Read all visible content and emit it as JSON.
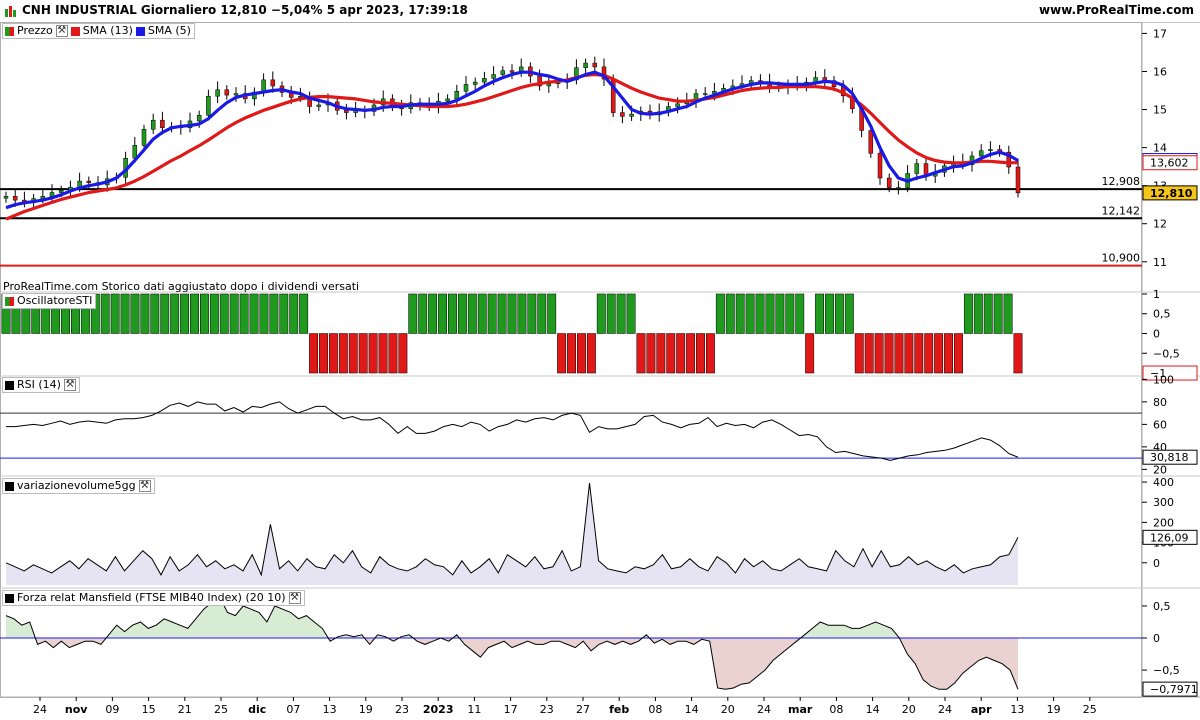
{
  "header": {
    "title": "CNH INDUSTRIAL Giornaliero 12,810 −5,04% 5 apr 2023, 17:39:18",
    "site": "www.ProRealTime.com"
  },
  "legend": {
    "price": "Prezzo",
    "sma13": "SMA (13)",
    "sma5": "SMA (5)",
    "sti": "OscillatoreSTI",
    "rsi": "RSI (14)",
    "vol": "variazionevolume5gg",
    "mansfield": "Forza relat Mansfield (FTSE MIB40 Index) (20 10)"
  },
  "note": "ProRealTime.com Storico dati aggiustato dopo i dividendi versati",
  "colors": {
    "up": "#1f9a1f",
    "down": "#e01818",
    "sma13": "#e01818",
    "sma5": "#1a1ae6",
    "line_black": "#000000",
    "line_blue": "#1a1ae6"
  },
  "chart_data": [
    {
      "type": "line",
      "title": "CNH INDUSTRIAL Giornaliero",
      "x_ticks": [
        "24",
        "nov",
        "09",
        "15",
        "21",
        "25",
        "dic",
        "07",
        "13",
        "19",
        "23",
        "2023",
        "11",
        "17",
        "23",
        "27",
        "feb",
        "08",
        "14",
        "20",
        "24",
        "mar",
        "08",
        "14",
        "20",
        "24",
        "apr",
        "13",
        "19",
        "25"
      ],
      "y_ticks": [
        "11",
        "12",
        "13",
        "14",
        "15",
        "16",
        "17"
      ],
      "ylim": [
        10.6,
        17.3
      ],
      "horizontal_lines": [
        {
          "label": "12,908",
          "value": 12.908
        },
        {
          "label": "12,142",
          "value": 12.142
        },
        {
          "label": "10,900",
          "value": 10.9
        }
      ],
      "axis_tags": [
        {
          "label": "13,660",
          "value": 13.66
        },
        {
          "label": "13,602",
          "value": 13.602
        },
        {
          "label": "12,810",
          "value": 12.81
        }
      ],
      "series": [
        {
          "name": "Prezzo",
          "close": [
            12.72,
            12.62,
            12.55,
            12.66,
            12.72,
            12.82,
            12.88,
            12.96,
            13.12,
            13.08,
            13.02,
            13.18,
            13.22,
            13.72,
            14.06,
            14.48,
            14.72,
            14.52,
            14.55,
            14.52,
            14.7,
            14.85,
            15.35,
            15.52,
            15.38,
            15.42,
            15.28,
            15.46,
            15.78,
            15.62,
            15.45,
            15.32,
            15.35,
            15.08,
            15.12,
            15.2,
            14.98,
            14.92,
            14.98,
            14.95,
            15.12,
            15.28,
            15.08,
            15.02,
            15.18,
            15.15,
            15.08,
            15.22,
            15.28,
            15.48,
            15.66,
            15.72,
            15.82,
            15.92,
            16.02,
            15.98,
            16.12,
            15.88,
            15.62,
            15.68,
            15.72,
            15.78,
            16.1,
            16.22,
            16.12,
            15.8,
            14.92,
            14.82,
            14.88,
            14.96,
            14.86,
            14.94,
            15.08,
            15.15,
            15.22,
            15.42,
            15.42,
            15.48,
            15.56,
            15.62,
            15.68,
            15.76,
            15.72,
            15.62,
            15.58,
            15.62,
            15.66,
            15.72,
            15.84,
            15.76,
            15.6,
            15.36,
            15.02,
            14.45,
            13.85,
            13.2,
            12.95,
            12.95,
            13.32,
            13.58,
            13.25,
            13.35,
            13.52,
            13.62,
            13.55,
            13.78,
            13.92,
            13.95,
            13.88,
            13.49,
            12.81
          ]
        },
        {
          "name": "SMA (13)",
          "values": [
            12.12,
            12.22,
            12.32,
            12.4,
            12.48,
            12.56,
            12.64,
            12.7,
            12.76,
            12.82,
            12.86,
            12.9,
            12.94,
            13.02,
            13.12,
            13.24,
            13.38,
            13.52,
            13.66,
            13.78,
            13.92,
            14.05,
            14.2,
            14.36,
            14.52,
            14.66,
            14.78,
            14.88,
            14.98,
            15.06,
            15.14,
            15.22,
            15.28,
            15.32,
            15.34,
            15.34,
            15.32,
            15.3,
            15.28,
            15.24,
            15.2,
            15.18,
            15.16,
            15.14,
            15.12,
            15.1,
            15.08,
            15.08,
            15.08,
            15.1,
            15.14,
            15.2,
            15.26,
            15.34,
            15.42,
            15.5,
            15.58,
            15.64,
            15.68,
            15.72,
            15.74,
            15.78,
            15.84,
            15.9,
            15.92,
            15.9,
            15.8,
            15.68,
            15.56,
            15.46,
            15.38,
            15.3,
            15.26,
            15.22,
            15.22,
            15.24,
            15.28,
            15.32,
            15.38,
            15.44,
            15.5,
            15.54,
            15.56,
            15.58,
            15.58,
            15.6,
            15.6,
            15.6,
            15.6,
            15.58,
            15.54,
            15.44,
            15.3,
            15.12,
            14.9,
            14.66,
            14.42,
            14.2,
            14.02,
            13.86,
            13.74,
            13.66,
            13.62,
            13.6,
            13.6,
            13.62,
            13.64,
            13.64,
            13.62,
            13.6,
            13.602
          ]
        },
        {
          "name": "SMA (5)",
          "values": [
            12.42,
            12.5,
            12.55,
            12.58,
            12.62,
            12.68,
            12.76,
            12.86,
            12.94,
            13.0,
            13.04,
            13.1,
            13.2,
            13.4,
            13.66,
            13.94,
            14.22,
            14.4,
            14.52,
            14.56,
            14.58,
            14.62,
            14.76,
            14.98,
            15.18,
            15.32,
            15.38,
            15.42,
            15.46,
            15.5,
            15.52,
            15.46,
            15.42,
            15.3,
            15.24,
            15.18,
            15.08,
            15.02,
            15.0,
            14.98,
            15.0,
            15.06,
            15.08,
            15.08,
            15.12,
            15.14,
            15.14,
            15.14,
            15.16,
            15.24,
            15.36,
            15.48,
            15.62,
            15.74,
            15.84,
            15.92,
            15.98,
            15.98,
            15.92,
            15.88,
            15.8,
            15.74,
            15.82,
            15.92,
            15.98,
            15.88,
            15.6,
            15.3,
            15.0,
            14.9,
            14.88,
            14.9,
            14.95,
            15.02,
            15.08,
            15.2,
            15.3,
            15.38,
            15.46,
            15.54,
            15.6,
            15.66,
            15.7,
            15.7,
            15.68,
            15.66,
            15.66,
            15.66,
            15.7,
            15.74,
            15.72,
            15.64,
            15.42,
            15.02,
            14.56,
            14.0,
            13.52,
            13.2,
            13.12,
            13.2,
            13.26,
            13.34,
            13.42,
            13.5,
            13.52,
            13.6,
            13.72,
            13.82,
            13.88,
            13.8,
            13.66
          ]
        }
      ]
    },
    {
      "type": "bar",
      "title": "OscillatoreSTI",
      "y_ticks": [
        "1",
        "0,5",
        "0",
        "−0,5"
      ],
      "ylim": [
        -1.05,
        1.05
      ],
      "axis_tags": [
        {
          "label": "−1",
          "value": -1
        }
      ],
      "values": [
        1,
        1,
        1,
        1,
        1,
        1,
        1,
        1,
        1,
        1,
        1,
        1,
        1,
        1,
        1,
        1,
        1,
        1,
        1,
        1,
        1,
        1,
        1,
        1,
        1,
        1,
        1,
        1,
        1,
        1,
        1,
        -1,
        -1,
        -1,
        -1,
        -1,
        -1,
        -1,
        -1,
        -1,
        -1,
        1,
        1,
        1,
        1,
        1,
        1,
        1,
        1,
        1,
        1,
        1,
        1,
        1,
        1,
        1,
        -1,
        -1,
        -1,
        -1,
        1,
        1,
        1,
        1,
        -1,
        -1,
        -1,
        -1,
        -1,
        -1,
        -1,
        -1,
        1,
        1,
        1,
        1,
        1,
        1,
        1,
        1,
        1,
        -1,
        1,
        1,
        1,
        1,
        -1,
        -1,
        -1,
        -1,
        -1,
        -1,
        -1,
        -1,
        -1,
        -1,
        -1,
        1,
        1,
        1,
        1,
        1,
        -1
      ]
    },
    {
      "type": "line",
      "title": "RSI (14)",
      "y_ticks": [
        "100",
        "80",
        "60",
        "40",
        "20"
      ],
      "ylim": [
        15,
        103
      ],
      "horizontal_lines": [
        {
          "value": 70
        },
        {
          "value": 30
        }
      ],
      "axis_tags": [
        {
          "label": "30,818",
          "value": 30.818
        }
      ],
      "values": [
        58,
        58,
        59,
        60,
        59,
        61,
        63,
        60,
        62,
        63,
        62,
        61,
        64,
        65,
        65,
        66,
        68,
        72,
        77,
        79,
        76,
        80,
        78,
        78,
        72,
        75,
        71,
        76,
        75,
        78,
        80,
        74,
        70,
        73,
        76,
        76,
        70,
        65,
        67,
        64,
        64,
        66,
        60,
        52,
        58,
        52,
        52,
        54,
        58,
        60,
        58,
        62,
        60,
        54,
        58,
        60,
        64,
        62,
        65,
        66,
        64,
        68,
        70,
        68,
        53,
        58,
        56,
        56,
        58,
        60,
        67,
        68,
        62,
        60,
        57,
        60,
        61,
        66,
        58,
        61,
        59,
        60,
        57,
        62,
        64,
        60,
        55,
        50,
        51,
        49,
        40,
        35,
        36,
        34,
        32,
        31,
        30,
        28,
        30,
        32,
        33,
        35,
        36,
        37,
        39,
        42,
        45,
        48,
        46,
        41,
        34,
        30.8
      ]
    },
    {
      "type": "area",
      "title": "variazionevolume5gg",
      "y_ticks": [
        "400",
        "300",
        "200",
        "100",
        "0"
      ],
      "ylim": [
        -120,
        430
      ],
      "axis_tags": [
        {
          "label": "126,09",
          "value": 126.09
        }
      ],
      "values": [
        0,
        -20,
        -40,
        -10,
        -30,
        -50,
        -20,
        10,
        -30,
        20,
        -10,
        -40,
        30,
        -40,
        10,
        60,
        20,
        -60,
        30,
        -40,
        -10,
        40,
        -20,
        10,
        -30,
        -10,
        -40,
        40,
        -60,
        190,
        -30,
        10,
        -40,
        20,
        -20,
        -30,
        40,
        0,
        60,
        -20,
        -50,
        30,
        -10,
        -30,
        -40,
        -20,
        20,
        -10,
        -20,
        -60,
        10,
        -50,
        -20,
        20,
        -50,
        40,
        10,
        -20,
        30,
        -30,
        -20,
        60,
        -40,
        -20,
        395,
        10,
        -30,
        -40,
        -50,
        -20,
        -30,
        -10,
        40,
        -30,
        -20,
        20,
        -20,
        -40,
        30,
        0,
        -50,
        20,
        -20,
        10,
        -30,
        -40,
        -10,
        20,
        -20,
        -30,
        -40,
        60,
        10,
        -20,
        70,
        -20,
        60,
        -20,
        -10,
        30,
        -10,
        10,
        -20,
        -40,
        -10,
        -50,
        -30,
        -20,
        -10,
        30,
        40,
        126.09
      ]
    },
    {
      "type": "area",
      "title": "Forza relat Mansfield (FTSE MIB40 Index) (20 10)",
      "y_ticks": [
        "0,5",
        "0",
        "−0,5"
      ],
      "ylim": [
        -0.92,
        0.78
      ],
      "axis_tags": [
        {
          "label": "−0,7971",
          "value": -0.7971
        }
      ],
      "values": [
        0.35,
        0.3,
        0.2,
        0.25,
        -0.1,
        -0.05,
        -0.15,
        -0.05,
        -0.15,
        -0.1,
        -0.05,
        -0.05,
        -0.1,
        0.05,
        0.2,
        0.1,
        0.2,
        0.25,
        0.15,
        0.2,
        0.3,
        0.25,
        0.2,
        0.15,
        0.3,
        0.45,
        0.55,
        0.65,
        0.4,
        0.35,
        0.5,
        0.45,
        0.4,
        0.25,
        0.5,
        0.45,
        0.4,
        0.3,
        0.35,
        0.25,
        0.15,
        -0.05,
        0.02,
        0.05,
        0.02,
        0.05,
        -0.1,
        0.05,
        0.02,
        -0.05,
        0.02,
        0.05,
        -0.05,
        -0.1,
        -0.05,
        0.0,
        -0.05,
        0.05,
        -0.1,
        -0.2,
        -0.3,
        -0.15,
        -0.1,
        -0.05,
        -0.15,
        -0.1,
        -0.05,
        -0.1,
        -0.1,
        -0.05,
        -0.05,
        -0.1,
        -0.15,
        -0.05,
        -0.2,
        -0.1,
        -0.05,
        -0.1,
        -0.05,
        -0.1,
        -0.05,
        0.05,
        -0.08,
        -0.02,
        -0.1,
        -0.05,
        -0.05,
        -0.1,
        -0.02,
        -0.05,
        -0.78,
        -0.8,
        -0.78,
        -0.72,
        -0.7,
        -0.6,
        -0.5,
        -0.35,
        -0.25,
        -0.15,
        -0.05,
        0.05,
        0.15,
        0.25,
        0.2,
        0.2,
        0.2,
        0.15,
        0.15,
        0.2,
        0.25,
        0.2,
        0.15,
        0.0,
        -0.25,
        -0.4,
        -0.65,
        -0.75,
        -0.8,
        -0.8,
        -0.7,
        -0.55,
        -0.45,
        -0.35,
        -0.3,
        -0.35,
        -0.4,
        -0.5,
        -0.8
      ]
    }
  ]
}
